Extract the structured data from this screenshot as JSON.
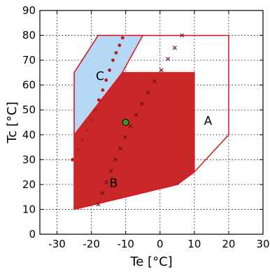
{
  "chart_data": {
    "type": "area",
    "xlabel": "Te [°C]",
    "ylabel": "Tc [°C]",
    "xlim": [
      -35,
      30
    ],
    "ylim": [
      0,
      90
    ],
    "xticks": [
      -30,
      -20,
      -10,
      0,
      10,
      20,
      30
    ],
    "yticks": [
      0,
      10,
      20,
      30,
      40,
      50,
      60,
      70,
      80,
      90
    ],
    "grid": true,
    "regions": [
      {
        "name": "A",
        "fill": "none",
        "stroke": "#e0141e",
        "points": [
          [
            -25,
            10
          ],
          [
            5,
            20
          ],
          [
            10,
            25
          ],
          [
            20,
            40
          ],
          [
            20,
            80
          ],
          [
            -18,
            80
          ],
          [
            -25,
            65
          ],
          [
            -25,
            10
          ]
        ],
        "label_pos": [
          14,
          44
        ]
      },
      {
        "name": "B",
        "fill": "#c8282a",
        "stroke": "#e0141e",
        "points": [
          [
            -25,
            10
          ],
          [
            5,
            20
          ],
          [
            10,
            25
          ],
          [
            10,
            65
          ],
          [
            -11,
            65
          ],
          [
            -25,
            40
          ],
          [
            -25,
            10
          ]
        ],
        "label_pos": [
          -13.5,
          19
        ]
      },
      {
        "name": "C",
        "fill": "#b4d8f6",
        "stroke": "#e0141e",
        "points": [
          [
            -25,
            40
          ],
          [
            -11,
            65
          ],
          [
            -5,
            80
          ],
          [
            -18,
            80
          ],
          [
            -25,
            65
          ],
          [
            -25,
            40
          ]
        ],
        "label_pos": [
          -17.5,
          62
        ]
      }
    ],
    "series": [
      {
        "marker": "x",
        "color": "#6a0f16",
        "x": [
          -18,
          -16.8,
          -15.6,
          -14.3,
          -13.0,
          -11.6,
          -10.1,
          -8.6,
          -7.0,
          -5.3,
          -3.5,
          -1.6,
          0.4,
          2.3,
          4.3,
          6.4
        ],
        "y": [
          12,
          16.5,
          21,
          25.5,
          30,
          34.5,
          39,
          43.5,
          48,
          52.5,
          57,
          61.5,
          66,
          70.5,
          75,
          80
        ]
      },
      {
        "marker": "*",
        "color": "#b01f22",
        "x": [
          -25.5,
          -24.0,
          -22.6,
          -21.3,
          -20.1,
          -18.9,
          -17.8,
          -16.7,
          -15.7,
          -14.7,
          -13.7,
          -12.8,
          -11.8,
          -10.9
        ],
        "y": [
          30,
          34,
          38,
          42,
          46,
          50,
          54,
          58,
          62,
          66,
          70,
          73,
          76,
          79
        ]
      }
    ],
    "points": [
      {
        "x": -10,
        "y": 45,
        "color": "#2e9a2e"
      }
    ]
  }
}
